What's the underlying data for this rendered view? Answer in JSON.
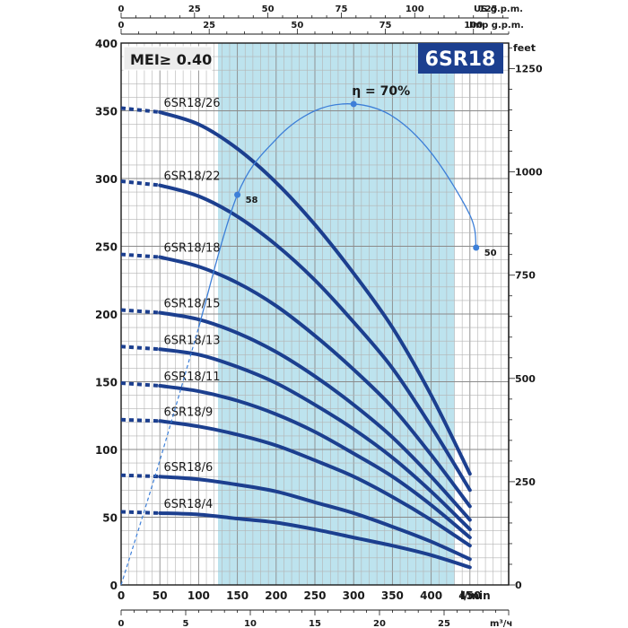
{
  "page": {
    "model_badge": "6SR18",
    "mei_badge": "MEI≥ 0.40"
  },
  "chart_data": {
    "type": "line",
    "title": "6SR18",
    "grid": true,
    "x": {
      "label": "l/min",
      "range": [
        0,
        500
      ],
      "ticks": [
        0,
        50,
        100,
        150,
        200,
        250,
        300,
        350,
        400,
        450
      ]
    },
    "y": {
      "range": [
        0,
        400
      ],
      "ticks": [
        0,
        50,
        100,
        150,
        200,
        250,
        300,
        350,
        400
      ]
    },
    "y_right": {
      "label": "feet",
      "range": [
        0,
        1312
      ],
      "ticks": [
        0,
        250,
        500,
        750,
        1000,
        1250
      ]
    },
    "x_top_us": {
      "label": "US g.p.m.",
      "range": [
        0,
        132
      ],
      "ticks": [
        0,
        25,
        50,
        75,
        100,
        125
      ]
    },
    "x_top_imp": {
      "label": "Imp g.p.m.",
      "range": [
        0,
        110
      ],
      "ticks": [
        0,
        25,
        50,
        75,
        100
      ]
    },
    "x_bottom_m3h": {
      "label": "m³/ч",
      "range": [
        0,
        30
      ],
      "ticks": [
        0,
        5,
        10,
        15,
        20,
        25
      ]
    },
    "operating_range": [
      125,
      430
    ],
    "series": [
      {
        "name": "6SR18/26",
        "x": [
          0,
          50,
          100,
          150,
          200,
          250,
          300,
          350,
          400,
          450
        ],
        "y": [
          352,
          349,
          340,
          322,
          297,
          266,
          230,
          190,
          140,
          82
        ]
      },
      {
        "name": "6SR18/22",
        "x": [
          0,
          50,
          100,
          150,
          200,
          250,
          300,
          350,
          400,
          450
        ],
        "y": [
          298,
          295,
          287,
          272,
          251,
          225,
          194,
          160,
          117,
          70
        ]
      },
      {
        "name": "6SR18/18",
        "x": [
          0,
          50,
          100,
          150,
          200,
          250,
          300,
          350,
          400,
          450
        ],
        "y": [
          244,
          242,
          235,
          223,
          206,
          184,
          159,
          131,
          96,
          58
        ]
      },
      {
        "name": "6SR18/15",
        "x": [
          0,
          50,
          100,
          150,
          200,
          250,
          300,
          350,
          400,
          450
        ],
        "y": [
          203,
          201,
          196,
          186,
          172,
          154,
          133,
          109,
          80,
          48
        ]
      },
      {
        "name": "6SR18/13",
        "x": [
          0,
          50,
          100,
          150,
          200,
          250,
          300,
          350,
          400,
          450
        ],
        "y": [
          176,
          174,
          170,
          161,
          149,
          133,
          115,
          94,
          69,
          41
        ]
      },
      {
        "name": "6SR18/11",
        "x": [
          0,
          50,
          100,
          150,
          200,
          250,
          300,
          350,
          400,
          450
        ],
        "y": [
          149,
          147,
          143,
          136,
          126,
          113,
          97,
          80,
          59,
          35
        ]
      },
      {
        "name": "6SR18/9",
        "x": [
          0,
          50,
          100,
          150,
          200,
          250,
          300,
          350,
          400,
          450
        ],
        "y": [
          122,
          121,
          117,
          111,
          103,
          92,
          80,
          65,
          48,
          29
        ]
      },
      {
        "name": "6SR18/6",
        "x": [
          0,
          50,
          100,
          150,
          200,
          250,
          300,
          350,
          400,
          450
        ],
        "y": [
          81,
          80,
          78,
          74,
          69,
          61,
          53,
          43,
          32,
          19
        ]
      },
      {
        "name": "6SR18/4",
        "x": [
          0,
          50,
          100,
          150,
          200,
          250,
          300,
          350,
          400,
          450
        ],
        "y": [
          54,
          53,
          52,
          49,
          46,
          41,
          35,
          29,
          22,
          13
        ]
      }
    ],
    "efficiency": {
      "label": "η = 70%",
      "x": [
        0,
        50,
        100,
        150,
        200,
        250,
        300,
        350,
        400,
        450,
        458
      ],
      "y": [
        0,
        92,
        190,
        288,
        329,
        350,
        355,
        346,
        319,
        273,
        249
      ],
      "markers": [
        {
          "label": "58",
          "x": 150,
          "y": 288
        },
        {
          "label": "",
          "x": 300,
          "y": 355
        },
        {
          "label": "50",
          "x": 458,
          "y": 249
        }
      ]
    }
  }
}
